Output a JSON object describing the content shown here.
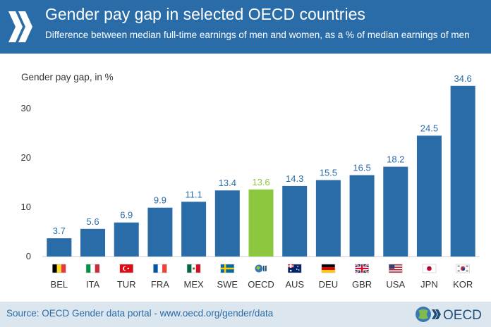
{
  "header": {
    "title": "Gender pay gap in selected OECD countries",
    "subtitle": "Difference between median full-time earnings of men and women, as a % of median earnings of men"
  },
  "footer": {
    "source": "Source: OECD Gender data portal - www.oecd.org/gender/data",
    "brand": "OECD"
  },
  "colors": {
    "header_bg": "#2a6ca8",
    "bar": "#2a6ca8",
    "highlight_bar": "#8dc63f",
    "footer_bg": "#dce6ef"
  },
  "chart_data": {
    "type": "bar",
    "title": "Gender pay gap in selected OECD countries",
    "subtitle": "Difference between median full-time earnings of men and women, as a % of median earnings of men",
    "ylabel": "Gender pay gap, in %",
    "ylim": [
      0,
      35
    ],
    "yticks": [
      0,
      10,
      20,
      30
    ],
    "grid": false,
    "highlight": "OECD",
    "categories": [
      "BEL",
      "ITA",
      "TUR",
      "FRA",
      "MEX",
      "SWE",
      "OECD",
      "AUS",
      "DEU",
      "GBR",
      "USA",
      "JPN",
      "KOR"
    ],
    "values": [
      3.7,
      5.6,
      6.9,
      9.9,
      11.1,
      13.4,
      13.6,
      14.3,
      15.5,
      16.5,
      18.2,
      24.5,
      34.6
    ],
    "flag_icons": [
      "belgium-flag-icon",
      "italy-flag-icon",
      "turkey-flag-icon",
      "france-flag-icon",
      "mexico-flag-icon",
      "sweden-flag-icon",
      "oecd-logo-icon",
      "australia-flag-icon",
      "germany-flag-icon",
      "uk-flag-icon",
      "usa-flag-icon",
      "japan-flag-icon",
      "korea-flag-icon"
    ]
  }
}
